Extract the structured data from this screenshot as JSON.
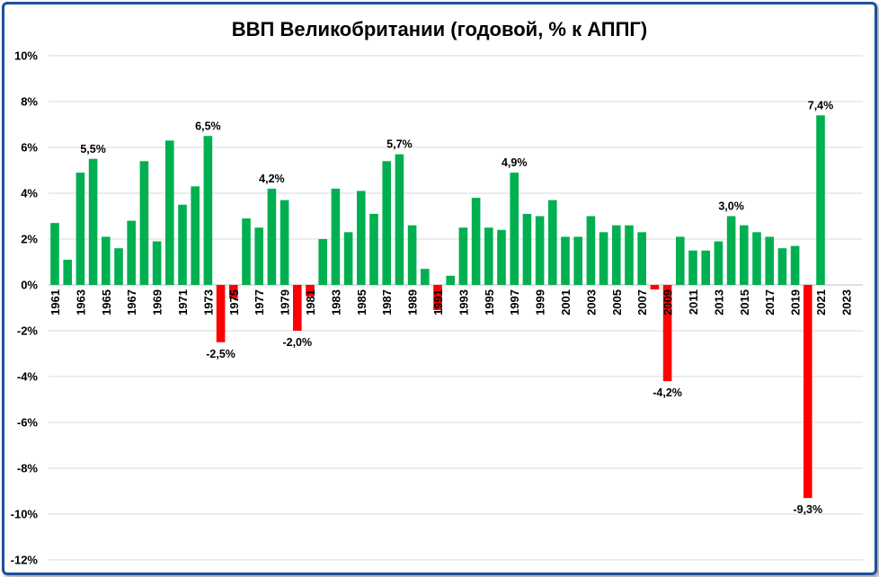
{
  "chart_data": {
    "type": "bar",
    "title": "ВВП Великобритании (годовой, % к АППГ)",
    "xlabel": "",
    "ylabel": "",
    "ylim": [
      -12,
      10
    ],
    "yticks": [
      "10%",
      "8%",
      "6%",
      "4%",
      "2%",
      "0%",
      "-2%",
      "-4%",
      "-6%",
      "-8%",
      "-10%",
      "-12%"
    ],
    "grid": true,
    "legend": "none",
    "colors": {
      "positive": "#00b050",
      "negative": "#ff0000",
      "frame": "#1f4e9c",
      "grid": "#d9d9d9"
    },
    "categories": [
      "1961",
      "1962",
      "1963",
      "1964",
      "1965",
      "1966",
      "1967",
      "1968",
      "1969",
      "1970",
      "1971",
      "1972",
      "1973",
      "1974",
      "1975",
      "1976",
      "1977",
      "1978",
      "1979",
      "1980",
      "1981",
      "1982",
      "1983",
      "1984",
      "1985",
      "1986",
      "1987",
      "1988",
      "1989",
      "1990",
      "1991",
      "1992",
      "1993",
      "1994",
      "1995",
      "1996",
      "1997",
      "1998",
      "1999",
      "2000",
      "2001",
      "2002",
      "2003",
      "2004",
      "2005",
      "2006",
      "2007",
      "2008",
      "2009",
      "2010",
      "2011",
      "2012",
      "2013",
      "2014",
      "2015",
      "2016",
      "2017",
      "2018",
      "2019",
      "2020",
      "2021",
      "2022",
      "2023"
    ],
    "tick_labels": [
      "1961",
      "1963",
      "1965",
      "1967",
      "1969",
      "1971",
      "1973",
      "1975",
      "1977",
      "1979",
      "1981",
      "1983",
      "1985",
      "1987",
      "1989",
      "1991",
      "1993",
      "1995",
      "1997",
      "1999",
      "2001",
      "2003",
      "2005",
      "2007",
      "2009",
      "2011",
      "2013",
      "2015",
      "2017",
      "2019",
      "2021",
      "2023"
    ],
    "values": [
      2.7,
      1.1,
      4.9,
      5.5,
      2.1,
      1.6,
      2.8,
      5.4,
      1.9,
      6.3,
      3.5,
      4.3,
      6.5,
      -2.5,
      -0.6,
      2.9,
      2.5,
      4.2,
      3.7,
      -2.0,
      -0.5,
      2.0,
      4.2,
      2.3,
      4.1,
      3.1,
      5.4,
      5.7,
      2.6,
      0.7,
      -1.1,
      0.4,
      2.5,
      3.8,
      2.5,
      2.4,
      4.9,
      3.1,
      3.0,
      3.7,
      2.1,
      2.1,
      3.0,
      2.3,
      2.6,
      2.6,
      2.3,
      -0.2,
      -4.2,
      2.1,
      1.5,
      1.5,
      1.9,
      3.0,
      2.6,
      2.3,
      2.1,
      1.6,
      1.7,
      -9.3,
      7.4,
      null,
      null
    ],
    "data_labels": [
      {
        "year": "1964",
        "text": "5,5%"
      },
      {
        "year": "1973",
        "text": "6,5%"
      },
      {
        "year": "1974",
        "text": "-2,5%"
      },
      {
        "year": "1978",
        "text": "4,2%"
      },
      {
        "year": "1980",
        "text": "-2,0%"
      },
      {
        "year": "1988",
        "text": "5,7%"
      },
      {
        "year": "1997",
        "text": "4,9%"
      },
      {
        "year": "2009",
        "text": "-4,2%"
      },
      {
        "year": "2014",
        "text": "3,0%"
      },
      {
        "year": "2020",
        "text": "-9,3%"
      },
      {
        "year": "2021",
        "text": "7,4%"
      }
    ]
  }
}
